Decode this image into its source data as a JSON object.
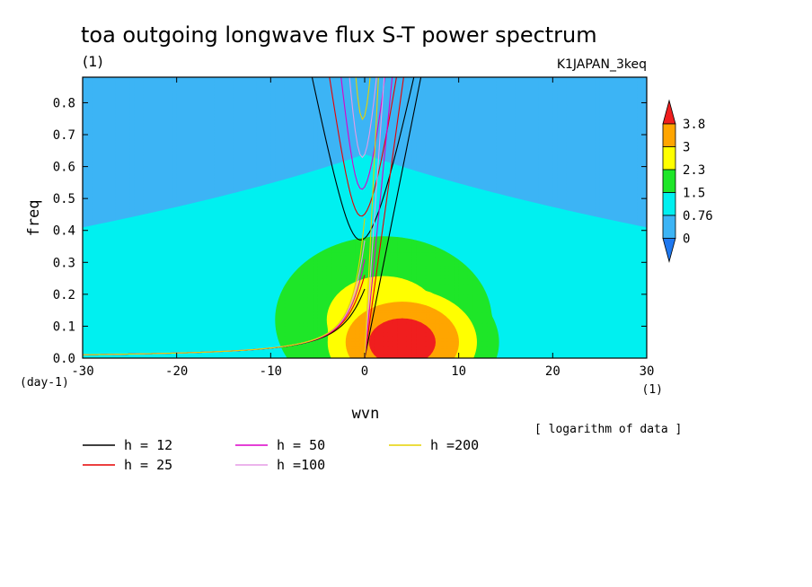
{
  "chart_data": {
    "type": "heatmap",
    "title": "toa outgoing longwave flux S-T power spectrum",
    "subtitle": "(1)",
    "dataset_label": "K1JAPAN_3keq",
    "xlabel": "wvn",
    "x_unit": "(1)",
    "ylabel": "freq",
    "y_unit": "(day-1)",
    "xlim": [
      -30,
      30
    ],
    "ylim": [
      0,
      0.88
    ],
    "xticks": [
      "-30",
      "-20",
      "-10",
      "0",
      "10",
      "20",
      "30"
    ],
    "yticks": [
      "0.0",
      "0.1",
      "0.2",
      "0.3",
      "0.4",
      "0.5",
      "0.6",
      "0.7",
      "0.8"
    ],
    "note": "[ logarithm of data ]",
    "colorbar": {
      "levels": [
        "0",
        "0.76",
        "1.5",
        "2.3",
        "3",
        "3.8"
      ],
      "colors": [
        "#1e78f0",
        "#3cb4f5",
        "#00f0f0",
        "#1ee628",
        "#ffff00",
        "#ffa500",
        "#f01e1e"
      ]
    },
    "field_levels": [
      {
        "level": 0.0,
        "color": "#3cb4f5"
      },
      {
        "level": 0.76,
        "color": "#00f0f0"
      },
      {
        "level": 1.5,
        "color": "#1ee628"
      },
      {
        "level": 2.3,
        "color": "#ffff00"
      },
      {
        "level": 3.0,
        "color": "#ffa500"
      },
      {
        "level": 3.8,
        "color": "#f01e1e"
      }
    ],
    "field_background": "#1e78f0",
    "dispersion_legend": [
      {
        "label": "h = 12",
        "h": 12,
        "color": "#000000"
      },
      {
        "label": "h = 25",
        "h": 25,
        "color": "#e60000"
      },
      {
        "label": "h = 50",
        "h": 50,
        "color": "#dc00c8"
      },
      {
        "label": "h =100",
        "h": 100,
        "color": "#e69be6"
      },
      {
        "label": "h =200",
        "h": 200,
        "color": "#e6d200"
      }
    ]
  }
}
